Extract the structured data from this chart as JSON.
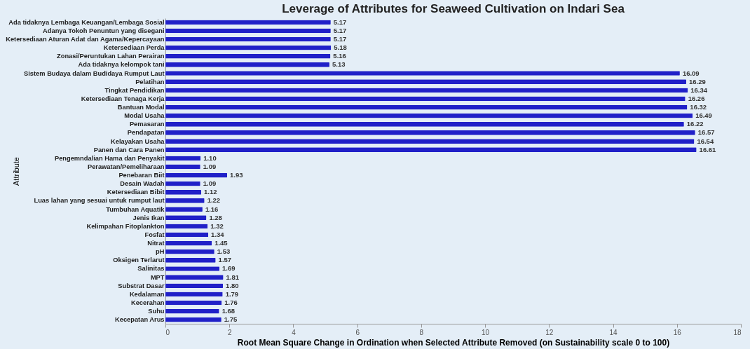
{
  "chart_data": {
    "type": "bar",
    "orientation": "horizontal",
    "title": "Leverage of Attributes for Seaweed Cultivation on Indari Sea",
    "xlabel": "Root Mean Square Change in Ordination when Selected Attribute Removed (on Sustainability scale 0 to 100)",
    "ylabel": "Attribute",
    "categories": [
      "Ada tidaknya Lembaga Keuangan/Lembaga Sosial",
      "Adanya Tokoh Penuntun yang disegani",
      "Ketersediaan Aturan Adat dan Agama/Kepercayaan",
      "Ketersediaan Perda",
      "Zonasi/Peruntukan Lahan Perairan",
      "Ada tidaknya kelompok tani",
      "Sistem Budaya dalam Budidaya Rumput Laut",
      "Pelatihan",
      "Tingkat Pendidikan",
      "Ketersediaan Tenaga Kerja",
      "Bantuan Modal",
      "Modal Usaha",
      "Pemasaran",
      "Pendapatan",
      "Kelayakan Usaha",
      "Panen dan Cara Panen",
      "Pengemndalian Hama dan Penyakit",
      "Perawatan/Pemeliharaan",
      "Penebaran Biit",
      "Desain Wadah",
      "Ketersediaan Bibit",
      "Luas lahan yang sesuai untuk rumput laut",
      "Tumbuhan Aquatik",
      "Jenis Ikan",
      "Kelimpahan Fitoplankton",
      "Fosfat",
      "Nitrat",
      "pH",
      "Oksigen Terlarut",
      "Salinitas",
      "MPT",
      "Substrat Dasar",
      "Kedalaman",
      "Kecerahan",
      "Suhu",
      "Kecepatan Arus"
    ],
    "values": [
      5.17,
      5.17,
      5.17,
      5.18,
      5.16,
      5.13,
      16.09,
      16.29,
      16.34,
      16.26,
      16.32,
      16.49,
      16.22,
      16.57,
      16.54,
      16.61,
      1.1,
      1.09,
      1.93,
      1.09,
      1.12,
      1.22,
      1.16,
      1.28,
      1.32,
      1.34,
      1.45,
      1.53,
      1.57,
      1.69,
      1.81,
      1.8,
      1.79,
      1.76,
      1.68,
      1.75
    ],
    "value_labels": [
      "5.17",
      "5.17",
      "5.17",
      "5.18",
      "5.16",
      "5.13",
      "16.09",
      "16.29",
      "16.34",
      "16.26",
      "16.32",
      "16.49",
      "16.22",
      "16.57",
      "16.54",
      "16.61",
      "1.10",
      "1.09",
      "1.93",
      "1.09",
      "1.12",
      "1.22",
      "1.16",
      "1.28",
      "1.32",
      "1.34",
      "1.45",
      "1.53",
      "1.57",
      "1.69",
      "1.81",
      "1.80",
      "1.79",
      "1.76",
      "1.68",
      "1.75"
    ],
    "color": "#2020c8",
    "xlim": [
      0,
      18
    ],
    "xticks": [
      0,
      2,
      4,
      6,
      8,
      10,
      12,
      14,
      16,
      18
    ],
    "grid": false
  }
}
